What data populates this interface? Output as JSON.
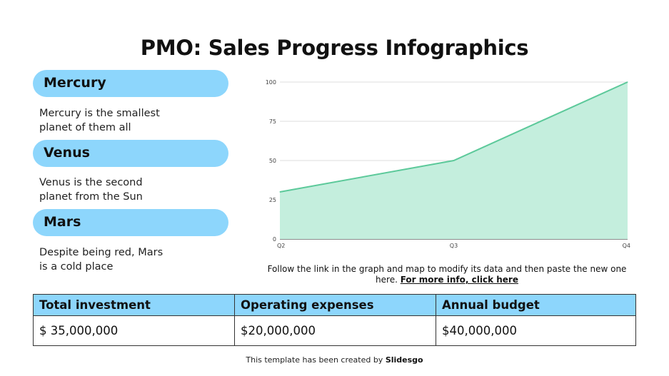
{
  "title": "PMO: Sales Progress Infographics",
  "planets": [
    {
      "name": "Mercury",
      "desc1": "Mercury is the smallest",
      "desc2": "planet of them all"
    },
    {
      "name": "Venus",
      "desc1": "Venus is the second",
      "desc2": "planet from the Sun"
    },
    {
      "name": "Mars",
      "desc1": "Despite being red, Mars",
      "desc2": "is a cold place"
    }
  ],
  "chart_data": {
    "type": "area",
    "categories": [
      "Q2",
      "Q3",
      "Q4"
    ],
    "values": [
      30,
      50,
      100
    ],
    "ylim": [
      0,
      100
    ],
    "yticks": [
      "0",
      "25",
      "50",
      "75",
      "100"
    ],
    "grid": true,
    "colors": {
      "line": "#5cc99a",
      "fill": "#c4eedd",
      "grid": "#dddddd"
    }
  },
  "caption": {
    "text": "Follow the link in the graph and map to modify its data and then paste the new one here.",
    "link": "For more info, click here"
  },
  "table": {
    "headers": [
      "Total investment",
      "Operating expenses",
      "Annual budget"
    ],
    "values": [
      "$ 35,000,000",
      "$20,000,000",
      "$40,000,000"
    ]
  },
  "footer": {
    "text": "This template has been created by",
    "brand": "Slidesgo"
  },
  "colors": {
    "accent": "#8dd6fc"
  }
}
